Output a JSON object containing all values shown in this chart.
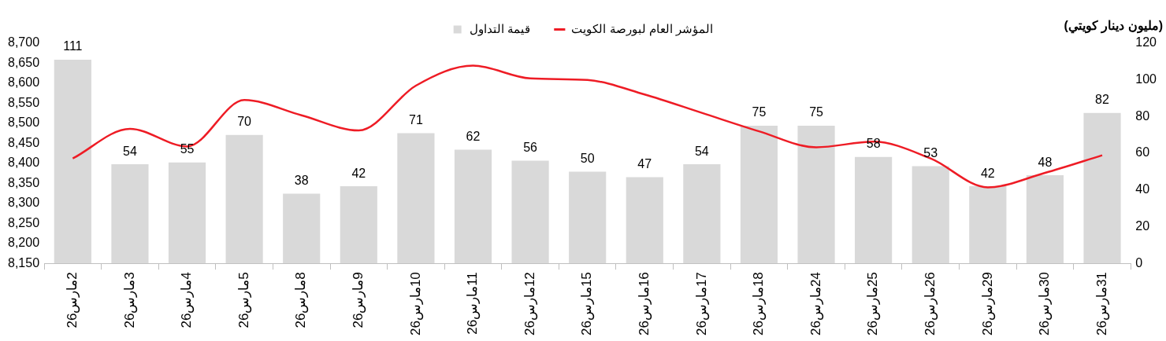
{
  "chart_data": {
    "type": "bar",
    "y2label": "(مليون دينار كويتي)",
    "legend": "top",
    "grid": false,
    "categories": [
      "2مارس26",
      "3مارس26",
      "4مارس26",
      "5مارس26",
      "8مارس26",
      "9مارس26",
      "10مارس26",
      "11مارس26",
      "12مارس26",
      "15مارس26",
      "16مارس26",
      "17مارس26",
      "18مارس26",
      "24مارس26",
      "25مارس26",
      "26مارس26",
      "29مارس26",
      "30مارس26",
      "31مارس26"
    ],
    "series": [
      {
        "name": "قيمة التداول",
        "axis": "y2",
        "color": "#d9d9d9",
        "values": [
          111,
          54,
          55,
          70,
          38,
          42,
          71,
          62,
          56,
          50,
          47,
          54,
          75,
          75,
          58,
          53,
          42,
          48,
          82
        ],
        "value_labels": [
          "111",
          "54",
          "55",
          "70",
          "38",
          "42",
          "71",
          "62",
          "56",
          "50",
          "47",
          "54",
          "75",
          "75",
          "58",
          "53",
          "42",
          "48",
          "82"
        ]
      },
      {
        "name": "المؤشر العام لبورصة الكويت",
        "type": "line",
        "color": "#ee1c25",
        "values": [
          8412,
          8486,
          8442,
          8558,
          8520,
          8482,
          8594,
          8644,
          8612,
          8608,
          8572,
          8526,
          8480,
          8440,
          8454,
          8412,
          8340,
          8376,
          8420
        ]
      }
    ],
    "ylim": [
      8150,
      8700
    ],
    "yticks": [
      {
        "value": 8150,
        "label": "8,150"
      },
      {
        "value": 8200,
        "label": "8,200"
      },
      {
        "value": 8250,
        "label": "8,250"
      },
      {
        "value": 8300,
        "label": "8,300"
      },
      {
        "value": 8350,
        "label": "8,350"
      },
      {
        "value": 8400,
        "label": "8,400"
      },
      {
        "value": 8450,
        "label": "8,450"
      },
      {
        "value": 8500,
        "label": "8,500"
      },
      {
        "value": 8550,
        "label": "8,550"
      },
      {
        "value": 8600,
        "label": "8,600"
      },
      {
        "value": 8650,
        "label": "8,650"
      },
      {
        "value": 8700,
        "label": "8,700"
      }
    ],
    "y2lim": [
      0,
      120
    ],
    "y2ticks": [
      0,
      20,
      40,
      60,
      80,
      100,
      120
    ]
  }
}
